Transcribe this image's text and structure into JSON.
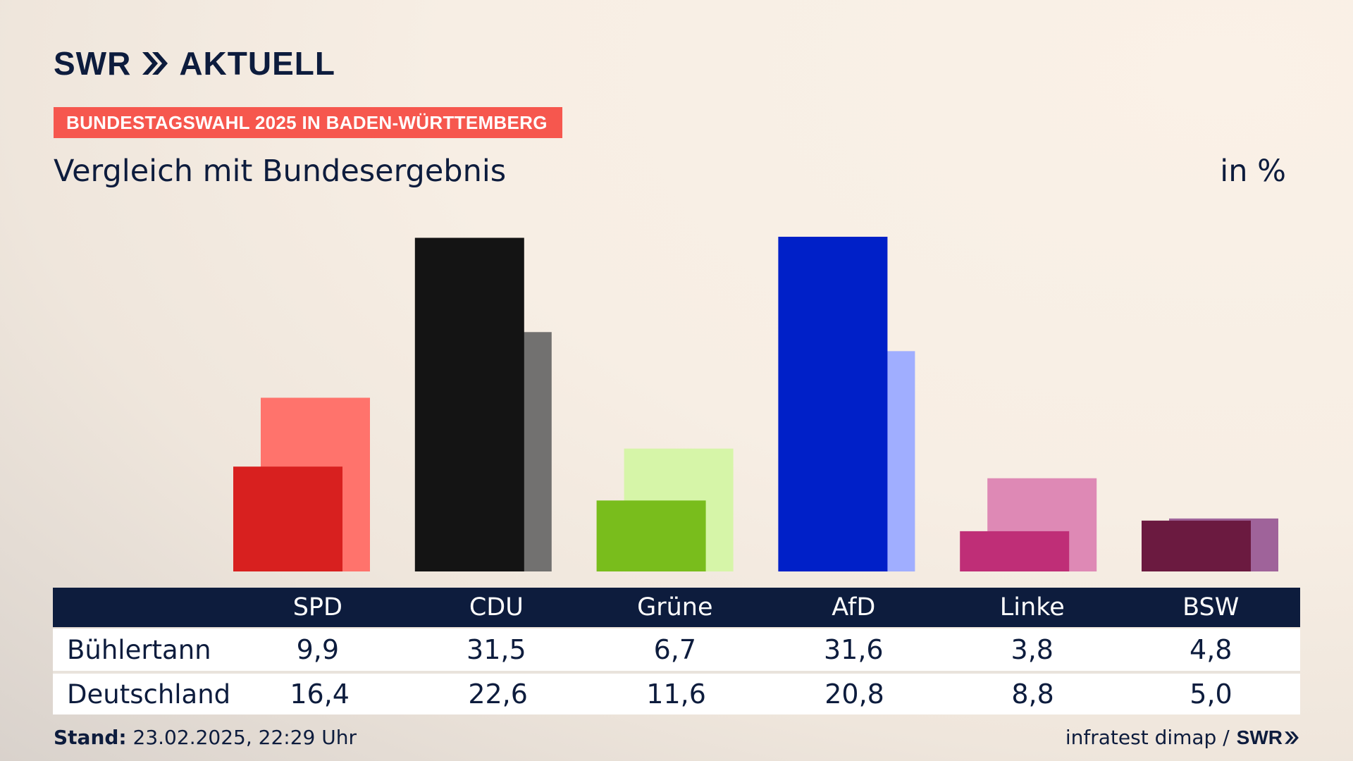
{
  "header": {
    "logo_text_left": "SWR",
    "logo_text_right": "AKTUELL",
    "badge": "BUNDESTAGSWAHL 2025 IN BADEN-WÜRTTEMBERG",
    "subtitle": "Vergleich mit Bundesergebnis",
    "unit": "in %"
  },
  "table": {
    "rows": [
      {
        "label": "Bühlertann",
        "values": [
          "9,9",
          "31,5",
          "6,7",
          "31,6",
          "3,8",
          "4,8"
        ]
      },
      {
        "label": "Deutschland",
        "values": [
          "16,4",
          "22,6",
          "11,6",
          "20,8",
          "8,8",
          "5,0"
        ]
      }
    ]
  },
  "footer": {
    "stand_label": "Stand:",
    "stand_value": "23.02.2025, 22:29 Uhr",
    "source": "infratest dimap /",
    "brand": "SWR"
  },
  "colors": {
    "navy": "#0d1c3d",
    "badge": "#f6574e"
  },
  "chart_data": {
    "type": "bar",
    "categories": [
      "SPD",
      "CDU",
      "Grüne",
      "AfD",
      "Linke",
      "BSW"
    ],
    "series": [
      {
        "name": "Bühlertann",
        "values": [
          9.9,
          31.5,
          6.7,
          31.6,
          3.8,
          4.8
        ],
        "colors": [
          "#d8201f",
          "#141414",
          "#79bd1c",
          "#0020c8",
          "#bf2e77",
          "#6b1a40"
        ]
      },
      {
        "name": "Deutschland",
        "values": [
          16.4,
          22.6,
          11.6,
          20.8,
          8.8,
          5.0
        ],
        "colors": [
          "#ff736c",
          "#727170",
          "#d6f5a8",
          "#a0aeff",
          "#de89b5",
          "#9f639a"
        ]
      }
    ],
    "ylim": [
      0,
      31.6
    ],
    "grid": false,
    "legend": "table-below"
  }
}
